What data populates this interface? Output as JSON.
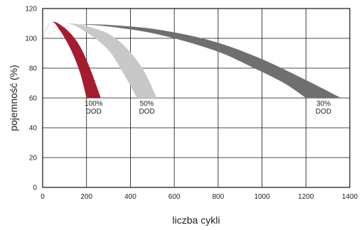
{
  "chart_data": {
    "type": "area",
    "xlabel": "liczba cykli",
    "ylabel": "pojemność (%)",
    "xlim": [
      0,
      1400
    ],
    "ylim": [
      0,
      120
    ],
    "x_ticks": [
      0,
      200,
      400,
      600,
      800,
      1000,
      1200,
      1400
    ],
    "y_ticks": [
      0,
      20,
      40,
      60,
      80,
      100,
      120
    ],
    "grid": true,
    "series": [
      {
        "name": "30% DOD",
        "color": "#6f6f6f",
        "upper": [
          [
            0,
            101
          ],
          [
            150,
            109
          ],
          [
            400,
            108
          ],
          [
            600,
            104
          ],
          [
            800,
            97
          ],
          [
            1000,
            86
          ],
          [
            1200,
            72
          ],
          [
            1360,
            60
          ]
        ],
        "lower": [
          [
            0,
            101
          ],
          [
            150,
            109
          ],
          [
            400,
            106
          ],
          [
            600,
            100
          ],
          [
            800,
            91
          ],
          [
            950,
            81
          ],
          [
            1100,
            70
          ],
          [
            1200,
            60
          ]
        ],
        "label_lines": [
          "30%",
          "DOD"
        ]
      },
      {
        "name": "50% DOD",
        "color": "#c8c8c8",
        "upper": [
          [
            0,
            101
          ],
          [
            100,
            110
          ],
          [
            250,
            106
          ],
          [
            350,
            98
          ],
          [
            450,
            81
          ],
          [
            520,
            60
          ]
        ],
        "lower": [
          [
            0,
            101
          ],
          [
            100,
            110
          ],
          [
            200,
            104
          ],
          [
            300,
            92
          ],
          [
            370,
            76
          ],
          [
            430,
            60
          ]
        ],
        "label_lines": [
          "50%",
          "DOD"
        ]
      },
      {
        "name": "100% DOD",
        "color": "#a51c30",
        "upper": [
          [
            0,
            101
          ],
          [
            40,
            111
          ],
          [
            100,
            107
          ],
          [
            160,
            97
          ],
          [
            210,
            82
          ],
          [
            265,
            60
          ]
        ],
        "lower": [
          [
            0,
            101
          ],
          [
            40,
            111
          ],
          [
            80,
            105
          ],
          [
            130,
            92
          ],
          [
            170,
            77
          ],
          [
            200,
            60
          ]
        ],
        "label_lines": [
          "100%",
          "DOD"
        ]
      }
    ]
  }
}
